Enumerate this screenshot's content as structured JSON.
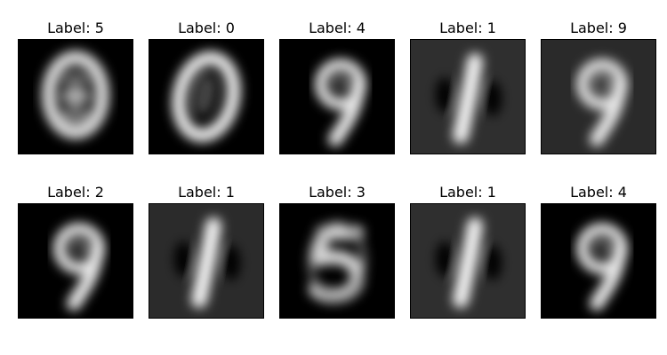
{
  "figure": {
    "label_prefix": "Label: ",
    "panels": [
      {
        "label": "5",
        "label_text": "Label: 5",
        "glyph": "eight-shape",
        "background": "#000000"
      },
      {
        "label": "0",
        "label_text": "Label: 0",
        "glyph": "zero-shape",
        "background": "#000000"
      },
      {
        "label": "4",
        "label_text": "Label: 4",
        "glyph": "nine-shape",
        "background": "#000000"
      },
      {
        "label": "1",
        "label_text": "Label: 1",
        "glyph": "one-shape",
        "background": "#2f2f2f"
      },
      {
        "label": "9",
        "label_text": "Label: 9",
        "glyph": "nine-shape",
        "background": "#2a2a2a"
      },
      {
        "label": "2",
        "label_text": "Label: 2",
        "glyph": "nine-shape",
        "background": "#000000"
      },
      {
        "label": "1",
        "label_text": "Label: 1",
        "glyph": "one-shape",
        "background": "#2b2b2b"
      },
      {
        "label": "3",
        "label_text": "Label: 3",
        "glyph": "five-shape",
        "background": "#000000"
      },
      {
        "label": "1",
        "label_text": "Label: 1",
        "glyph": "one-shape",
        "background": "#2f2f2f"
      },
      {
        "label": "4",
        "label_text": "Label: 4",
        "glyph": "nine-shape",
        "background": "#000000"
      }
    ]
  }
}
